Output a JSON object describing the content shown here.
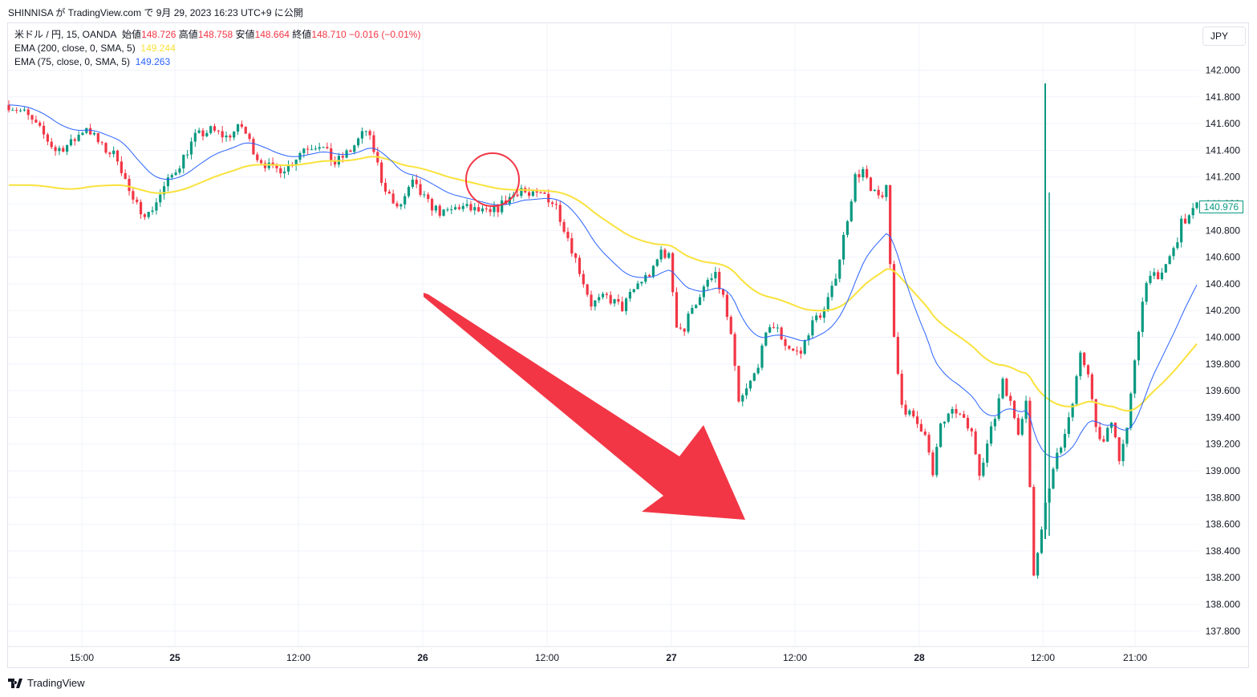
{
  "header": {
    "caption": "SHINNISA が TradingView.com で 9月 29, 2023 16:23 UTC+9 に公開"
  },
  "legend": {
    "symbol": "米ドル / 円, 15, OANDA",
    "open_label": "始値",
    "open": "148.726",
    "high_label": "高値",
    "high": "148.758",
    "low_label": "安値",
    "low": "148.664",
    "close_label": "終値",
    "close": "148.710",
    "change": "−0.016 (−0.01%)",
    "ema200_label": "EMA (200, close, 0, SMA, 5)",
    "ema200_value": "149.244",
    "ema75_label": "EMA (75, close, 0, SMA, 5)",
    "ema75_value": "149.263"
  },
  "currency": "JPY",
  "last_price_tag": "140.976",
  "footer": {
    "brand": "TradingView"
  },
  "colors": {
    "up": "#089981",
    "down": "#f23645",
    "ema200": "#f9e23c",
    "ema75": "#2962ff",
    "annotation": "#f23645",
    "grid": "#f0f3fa",
    "text": "#131722"
  },
  "chart_data": {
    "type": "candlestick",
    "ylim": [
      137.7,
      142.1
    ],
    "y_ticks": [
      "142.000",
      "141.800",
      "141.600",
      "141.400",
      "141.200",
      "141.000",
      "140.800",
      "140.600",
      "140.400",
      "140.200",
      "140.000",
      "139.800",
      "139.600",
      "139.400",
      "139.200",
      "139.000",
      "138.800",
      "138.600",
      "138.400",
      "138.200",
      "138.000",
      "137.800"
    ],
    "x_ticks": [
      "15:00",
      "25",
      "12:00",
      "26",
      "12:00",
      "27",
      "12:00",
      "28",
      "12:00",
      "21:00"
    ],
    "close_path": [
      [
        0,
        141.74
      ],
      [
        4,
        141.68
      ],
      [
        8,
        141.55
      ],
      [
        12,
        141.4
      ],
      [
        16,
        141.45
      ],
      [
        20,
        141.58
      ],
      [
        24,
        141.42
      ],
      [
        28,
        141.35
      ],
      [
        32,
        141.0
      ],
      [
        36,
        140.92
      ],
      [
        40,
        141.12
      ],
      [
        44,
        141.3
      ],
      [
        48,
        141.5
      ],
      [
        52,
        141.55
      ],
      [
        56,
        141.5
      ],
      [
        60,
        141.58
      ],
      [
        64,
        141.35
      ],
      [
        68,
        141.25
      ],
      [
        72,
        141.28
      ],
      [
        76,
        141.42
      ],
      [
        80,
        141.45
      ],
      [
        84,
        141.3
      ],
      [
        88,
        141.4
      ],
      [
        92,
        141.55
      ],
      [
        94,
        141.4
      ],
      [
        96,
        141.18
      ],
      [
        100,
        140.95
      ],
      [
        104,
        141.15
      ],
      [
        108,
        141.0
      ],
      [
        112,
        140.92
      ],
      [
        116,
        140.98
      ],
      [
        120,
        140.95
      ],
      [
        124,
        140.92
      ],
      [
        128,
        141.02
      ],
      [
        132,
        141.12
      ],
      [
        134,
        141.05
      ],
      [
        138,
        141.07
      ],
      [
        141,
        140.98
      ],
      [
        144,
        140.75
      ],
      [
        147,
        140.5
      ],
      [
        150,
        140.25
      ],
      [
        154,
        140.3
      ],
      [
        158,
        140.22
      ],
      [
        162,
        140.4
      ],
      [
        166,
        140.5
      ],
      [
        168,
        140.65
      ],
      [
        170,
        140.6
      ],
      [
        172,
        140.1
      ],
      [
        174,
        140.05
      ],
      [
        176,
        140.25
      ],
      [
        178,
        140.28
      ],
      [
        180,
        140.42
      ],
      [
        182,
        140.45
      ],
      [
        184,
        140.3
      ],
      [
        186,
        140.0
      ],
      [
        188,
        139.5
      ],
      [
        190,
        139.6
      ],
      [
        192,
        139.72
      ],
      [
        194,
        139.9
      ],
      [
        196,
        140.1
      ],
      [
        198,
        140.05
      ],
      [
        200,
        139.95
      ],
      [
        202,
        139.9
      ],
      [
        204,
        139.88
      ],
      [
        206,
        140.05
      ],
      [
        208,
        140.15
      ],
      [
        210,
        140.2
      ],
      [
        212,
        140.35
      ],
      [
        214,
        140.6
      ],
      [
        216,
        140.9
      ],
      [
        218,
        141.2
      ],
      [
        220,
        141.25
      ],
      [
        222,
        141.08
      ],
      [
        224,
        141.05
      ],
      [
        226,
        141.1
      ],
      [
        228,
        140.0
      ],
      [
        230,
        139.5
      ],
      [
        233,
        139.38
      ],
      [
        236,
        139.3
      ],
      [
        238,
        138.95
      ],
      [
        240,
        139.35
      ],
      [
        244,
        139.45
      ],
      [
        248,
        139.28
      ],
      [
        250,
        139.0
      ],
      [
        252,
        139.2
      ],
      [
        254,
        139.4
      ],
      [
        256,
        139.7
      ],
      [
        258,
        139.5
      ],
      [
        260,
        139.3
      ],
      [
        262,
        139.55
      ],
      [
        264,
        138.2
      ],
      [
        266,
        138.6
      ],
      [
        268,
        138.9
      ],
      [
        270,
        139.1
      ],
      [
        272,
        139.3
      ],
      [
        274,
        139.5
      ],
      [
        276,
        139.85
      ],
      [
        278,
        139.75
      ],
      [
        280,
        139.3
      ],
      [
        282,
        139.2
      ],
      [
        284,
        139.4
      ],
      [
        286,
        139.1
      ],
      [
        288,
        139.3
      ],
      [
        290,
        139.8
      ],
      [
        292,
        140.3
      ],
      [
        294,
        140.5
      ],
      [
        296,
        140.4
      ],
      [
        298,
        140.55
      ],
      [
        300,
        140.65
      ],
      [
        302,
        140.85
      ],
      [
        304,
        140.9
      ],
      [
        306,
        140.98
      ]
    ]
  }
}
